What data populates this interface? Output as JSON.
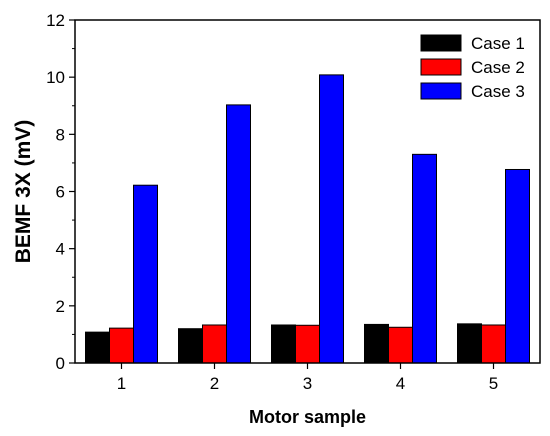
{
  "chart_data": {
    "type": "bar",
    "title": "",
    "xlabel": "Motor sample",
    "ylabel": "BEMF 3X (mV)",
    "categories": [
      "1",
      "2",
      "3",
      "4",
      "5"
    ],
    "ylim": [
      0,
      12
    ],
    "yticks": [
      "0",
      "2",
      "4",
      "6",
      "8",
      "10",
      "12"
    ],
    "grid": false,
    "legend_position": "top-right",
    "series": [
      {
        "name": "Case 1",
        "color": "#000000",
        "values": [
          1.08,
          1.2,
          1.33,
          1.35,
          1.37
        ]
      },
      {
        "name": "Case 2",
        "color": "#ff0000",
        "values": [
          1.22,
          1.33,
          1.32,
          1.25,
          1.33
        ]
      },
      {
        "name": "Case 3",
        "color": "#0000ff",
        "values": [
          6.22,
          9.03,
          10.08,
          7.3,
          6.77
        ]
      }
    ]
  }
}
